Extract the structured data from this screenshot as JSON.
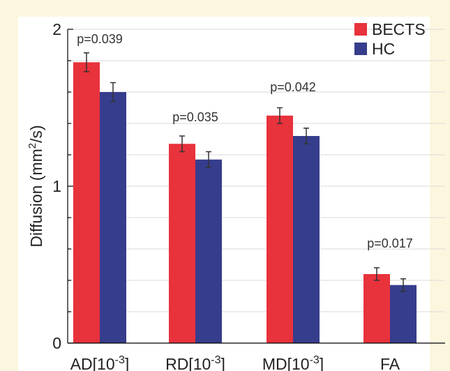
{
  "chart_data": {
    "type": "bar",
    "categories": [
      "AD[10^-3]",
      "RD[10^-3]",
      "MD[10^-3]",
      "FA"
    ],
    "category_labels": [
      {
        "base": "AD[10",
        "sup": "-3",
        "tail": "]"
      },
      {
        "base": "RD[10",
        "sup": "-3",
        "tail": "]"
      },
      {
        "base": "MD[10",
        "sup": "-3",
        "tail": "]"
      },
      {
        "base": "FA",
        "sup": "",
        "tail": ""
      }
    ],
    "series": [
      {
        "name": "BECTS",
        "values": [
          1.79,
          1.27,
          1.45,
          0.44
        ],
        "errors": [
          0.06,
          0.05,
          0.05,
          0.04
        ],
        "color": "#e8323c"
      },
      {
        "name": "HC",
        "values": [
          1.6,
          1.17,
          1.32,
          0.37
        ],
        "errors": [
          0.06,
          0.05,
          0.05,
          0.04
        ],
        "color": "#363d8c"
      }
    ],
    "annotations": [
      "p=0.039",
      "p=0.035",
      "p=0.042",
      "p=0.017"
    ],
    "ylabel": {
      "base": "Diffusion (mm",
      "sup": "2",
      "tail": "/s)"
    },
    "ylim": [
      0,
      2
    ],
    "yticks": [
      0,
      1,
      2
    ],
    "grid": true,
    "legend_position": "top-right"
  }
}
